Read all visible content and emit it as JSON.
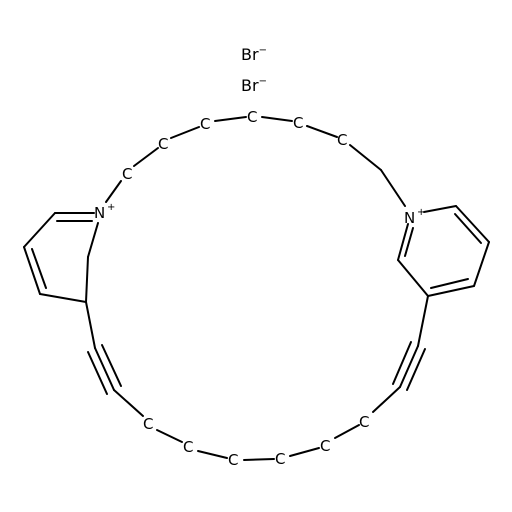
{
  "counter_ions": [
    {
      "element": "Br",
      "charge": "−"
    },
    {
      "element": "Br",
      "charge": "−"
    }
  ],
  "atoms": {
    "carbon_label": "C",
    "nitrogen_label": "N",
    "nitrogen_charge": "+"
  }
}
